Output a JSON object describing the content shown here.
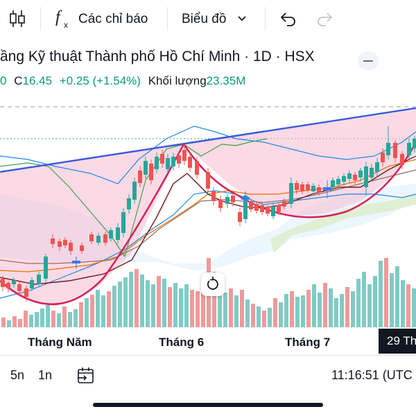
{
  "toolbar": {
    "indicators_label": "Các chỉ báo",
    "chart_type_label": "Biểu đồ",
    "icons": [
      "candles-icon",
      "fx-icon",
      "chevron-down-icon",
      "undo-icon",
      "redo-icon"
    ]
  },
  "header": {
    "title": "ầng Kỹ thuật Thành phố Hồ Chí Minh · 1D · HSX",
    "open_fragment": "0",
    "close_label": "C",
    "close_value": "16.45",
    "change": "+0.25 (+1.54%)",
    "volume_label": "Khối lượng",
    "volume_value": "23.35M"
  },
  "x_axis": {
    "labels": [
      "Tháng Năm",
      "Tháng 6",
      "Tháng 7"
    ],
    "current_date_badge": "29 Th"
  },
  "bottom_bar": {
    "interval_5m": "5n",
    "interval_1m": "1n",
    "time": "11:16:51 (UTC"
  },
  "colors": {
    "up": "#26a69a",
    "down": "#ef5350",
    "trendline": "#3b5bdb",
    "pattern_curve": "#d6205a",
    "pattern_fill": "#f8bbd0",
    "cloud_fill": "#e3f2fd",
    "background": "#ffffff"
  }
}
